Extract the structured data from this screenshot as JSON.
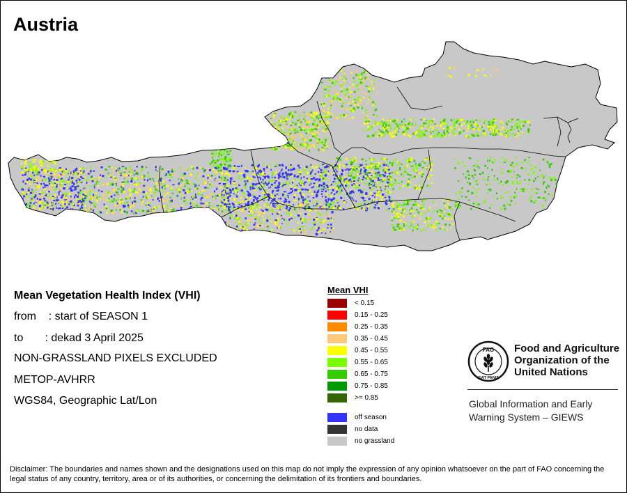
{
  "title": "Austria",
  "info": {
    "heading": "Mean Vegetation Health Index (VHI)",
    "from_line": "from    : start of SEASON 1",
    "to_line": "to       : dekad 3 April 2025",
    "note": "NON-GRASSLAND PIXELS EXCLUDED",
    "sensor": "METOP-AVHRR",
    "projection": "WGS84, Geographic Lat/Lon"
  },
  "legend": {
    "title": "Mean VHI",
    "classes": [
      {
        "label": "< 0.15",
        "color": "#990000"
      },
      {
        "label": "0.15 - 0.25",
        "color": "#ff0000"
      },
      {
        "label": "0.25 - 0.35",
        "color": "#ff8c00"
      },
      {
        "label": "0.35 - 0.45",
        "color": "#fcc97a"
      },
      {
        "label": "0.45 - 0.55",
        "color": "#ffff00"
      },
      {
        "label": "0.55 - 0.65",
        "color": "#7cfc00"
      },
      {
        "label": "0.65 - 0.75",
        "color": "#33cc00"
      },
      {
        "label": "0.75 - 0.85",
        "color": "#009900"
      },
      {
        "label": ">= 0.85",
        "color": "#336600"
      }
    ],
    "extra": [
      {
        "label": "off season",
        "color": "#3333ff"
      },
      {
        "label": "no data",
        "color": "#333333"
      },
      {
        "label": "no grassland",
        "color": "#c8c8c8"
      }
    ]
  },
  "org": {
    "line1": "Food and Agriculture",
    "line2": "Organization of the",
    "line3": "United Nations",
    "giews1": "Global Information and Early",
    "giews2": "Warning System – GIEWS",
    "logo_letters": "FAO",
    "logo_motto": "FIAT PANIS"
  },
  "disclaimer": "Disclaimer: The boundaries and names shown and the designations used on this map do not imply the expression of any opinion whatsoever on the part of FAO concerning the legal status of any country, territory, area or of its authorities, or concerning the delimitation of its frontiers and boundaries.",
  "map_colors": {
    "land": "#c8c8c8",
    "border": "#000000",
    "off_season": "#3333ff",
    "yellow": "#ffff00",
    "light_green": "#7cfc00",
    "green": "#33cc00",
    "tan": "#fcc97a"
  }
}
